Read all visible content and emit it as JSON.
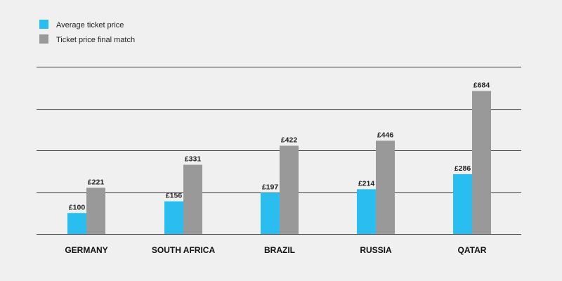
{
  "chart_data": {
    "type": "bar",
    "categories": [
      "GERMANY",
      "SOUTH AFRICA",
      "BRAZIL",
      "RUSSIA",
      "QATAR"
    ],
    "series": [
      {
        "name": "Average ticket price",
        "values": [
          100,
          156,
          197,
          214,
          286
        ],
        "labels": [
          "£100",
          "£156",
          "£197",
          "£214",
          "£286"
        ],
        "color": "#29bdf0"
      },
      {
        "name": "Ticket price final match",
        "values": [
          221,
          331,
          422,
          446,
          684
        ],
        "labels": [
          "£221",
          "£331",
          "£422",
          "£446",
          "£684"
        ],
        "color": "#999999"
      }
    ],
    "title": "",
    "xlabel": "",
    "ylabel": "",
    "ylim": [
      0,
      800
    ],
    "y_ticks": [
      0,
      200,
      400,
      600,
      800
    ],
    "y_tick_labels_shown": false,
    "grid": true,
    "legend_position": "top-left"
  },
  "colors": {
    "background": "#f0f0f0",
    "gridline": "#3a3a3a",
    "text": "#222222"
  }
}
